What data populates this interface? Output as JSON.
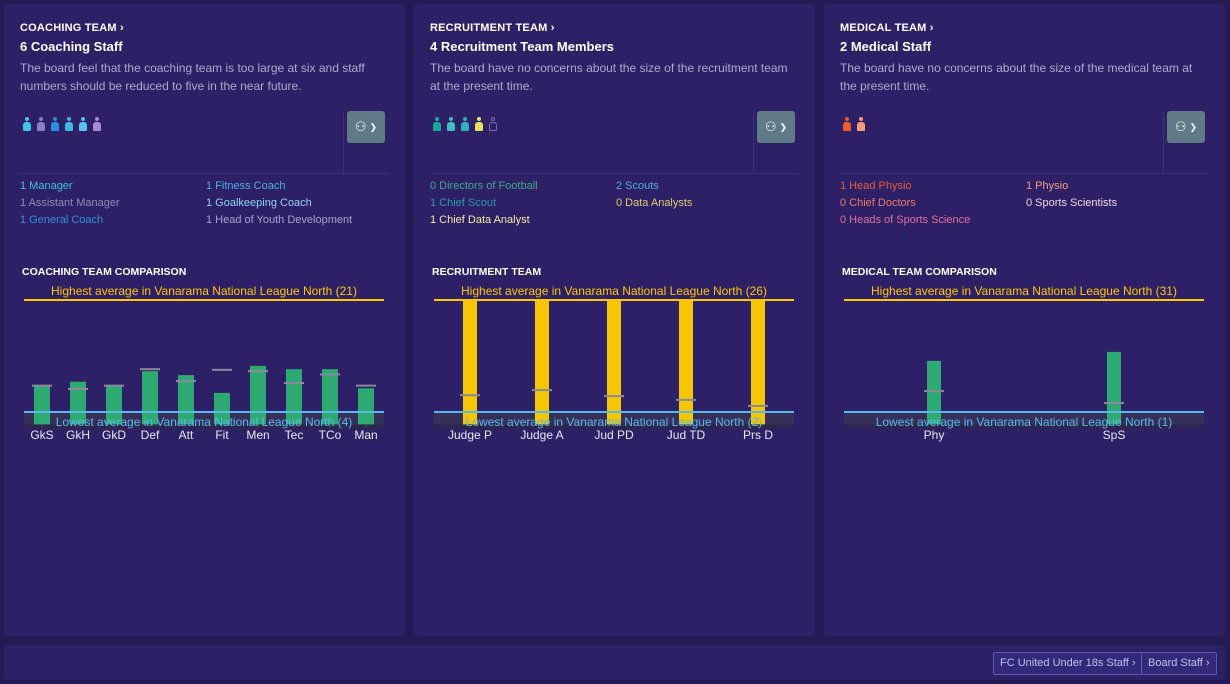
{
  "panels": [
    {
      "kicker": "COACHING TEAM",
      "title": "6 Coaching Staff",
      "description": "The board feel that the coaching team is too large at six and staff numbers should be reduced to five in the near future.",
      "people": [
        "#3fc6e6",
        "#8a7fcf",
        "#2c8ee0",
        "#3fb8e6",
        "#58c0ef",
        "#a78ad8"
      ],
      "roles": [
        {
          "text": "1 Manager",
          "color": "#3fc0e6"
        },
        {
          "text": "1 Fitness Coach",
          "color": "#4aaee8"
        },
        {
          "text": "1 Assistant Manager",
          "color": "#8f88b8"
        },
        {
          "text": "1 Goalkeeping Coach",
          "color": "#8fd4f0"
        },
        {
          "text": "1 General Coach",
          "color": "#2f8fe0"
        },
        {
          "text": "1 Head of Youth Development",
          "color": "#a8a2c8"
        }
      ],
      "chart_title": "COACHING TEAM COMPARISON"
    },
    {
      "kicker": "RECRUITMENT TEAM",
      "title": "4 Recruitment Team Members",
      "description": "The board have no concerns about the size of the recruitment team at the present time.",
      "people": [
        "#1aa89a",
        "#3fc0c0",
        "#2fb0c0",
        "#e6e060",
        "empty"
      ],
      "roles": [
        {
          "text": "0 Directors of Football",
          "color": "#3faa80"
        },
        {
          "text": "2 Scouts",
          "color": "#4ab0d8"
        },
        {
          "text": "1 Chief Scout",
          "color": "#2a9aa8"
        },
        {
          "text": "0 Data Analysts",
          "color": "#d8d070"
        },
        {
          "text": "1 Chief Data Analyst",
          "color": "#f0eca0"
        }
      ],
      "chart_title": "RECRUITMENT TEAM"
    },
    {
      "kicker": "MEDICAL TEAM",
      "title": "2 Medical Staff",
      "description": "The board have no concerns about the size of the medical team at the present time.",
      "people": [
        "#f05a28",
        "#f59a7a"
      ],
      "roles": [
        {
          "text": "1 Head Physio",
          "color": "#e85a3a"
        },
        {
          "text": "1 Physio",
          "color": "#f29a80"
        },
        {
          "text": "0 Chief Doctors",
          "color": "#ea7a6a"
        },
        {
          "text": "0 Sports Scientists",
          "color": "#f0d8e0"
        },
        {
          "text": "0 Heads of Sports Science",
          "color": "#e0709a"
        }
      ],
      "chart_title": "MEDICAL TEAM COMPARISON"
    }
  ],
  "add_staff_icon": "add-staff-icon",
  "chart_data": [
    {
      "type": "bar",
      "title": "COACHING TEAM COMPARISON",
      "categories": [
        "GkS",
        "GkH",
        "GkD",
        "Def",
        "Att",
        "Fit",
        "Men",
        "Tec",
        "TCo",
        "Man"
      ],
      "values": [
        8,
        8.6,
        8,
        10.2,
        9.6,
        6.9,
        11,
        10.5,
        10.5,
        7.6
      ],
      "league_average": [
        8,
        7.5,
        8,
        10.5,
        8.7,
        10.4,
        10.2,
        8.4,
        9.7,
        8
      ],
      "high": {
        "label": "Highest average in Vanarama National League North (21)",
        "value": 21,
        "color": "#ffc800"
      },
      "low": {
        "label": "Lowest average in Vanarama National League North (4)",
        "value": 4,
        "color": "#5ab8f0"
      },
      "bar_color": "#2db273"
    },
    {
      "type": "bar",
      "title": "RECRUITMENT TEAM",
      "categories": [
        "Judge P",
        "Judge A",
        "Jud PD",
        "Jud TD",
        "Prs D"
      ],
      "values": [
        26,
        26,
        26,
        26,
        26
      ],
      "league_average": [
        5.6,
        6.7,
        5.4,
        4.6,
        3.3
      ],
      "high": {
        "label": "Highest average in Vanarama National League North (26)",
        "value": 26,
        "color": "#ffc800"
      },
      "low": {
        "label": "Lowest average in Vanarama National League North (2)",
        "value": 2,
        "color": "#5ab8f0"
      },
      "bar_color": "#ffd000"
    },
    {
      "type": "bar",
      "title": "MEDICAL TEAM COMPARISON",
      "categories": [
        "Phy",
        "SpS"
      ],
      "values": [
        14.7,
        17.1
      ],
      "league_average": [
        6.6,
        3.4
      ],
      "high": {
        "label": "Highest average in Vanarama National League North (31)",
        "value": 31,
        "color": "#ffc800"
      },
      "low": {
        "label": "Lowest average in Vanarama National League North (1)",
        "value": 1,
        "color": "#5ab8f0"
      },
      "bar_color": "#2db273"
    }
  ],
  "footer": {
    "under18_label": "FC United Under 18s Staff",
    "board_label": "Board Staff"
  }
}
